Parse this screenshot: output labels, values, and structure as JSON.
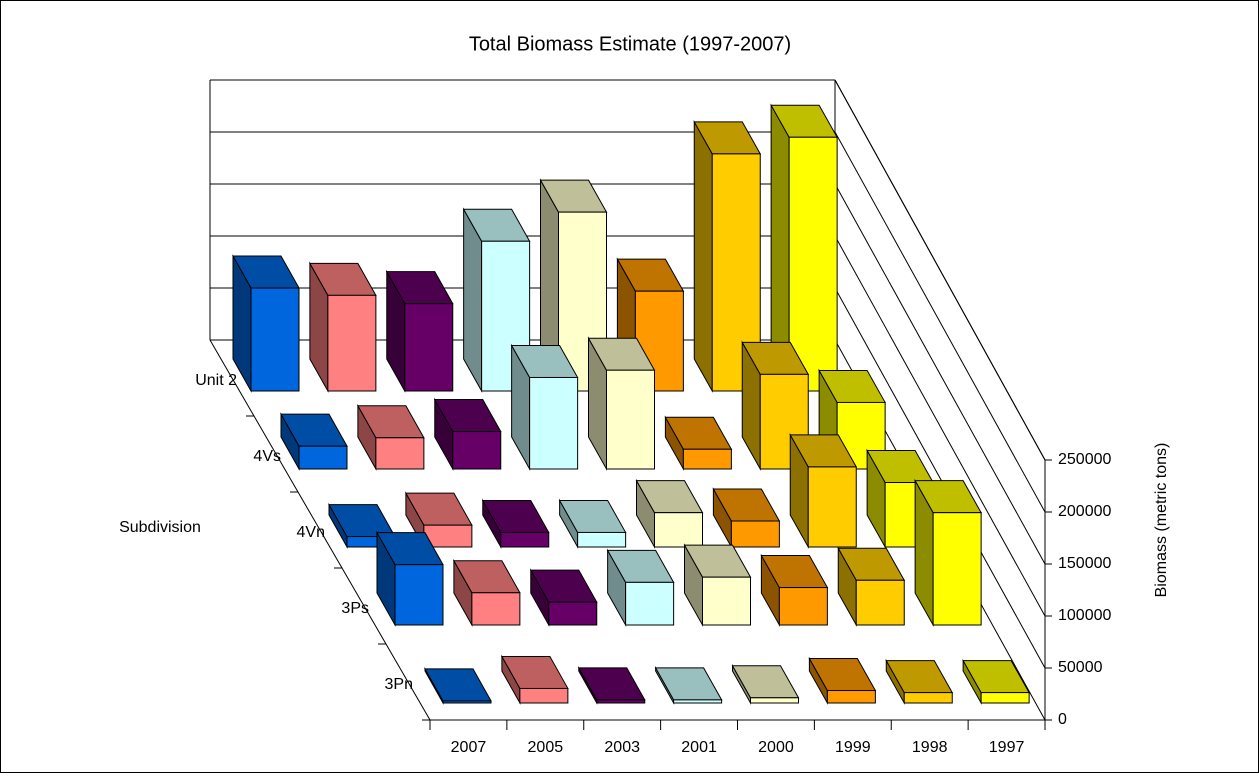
{
  "chart_data": {
    "type": "bar3d",
    "title": "Total Biomass Estimate (1997-2007)",
    "x_label": "Subdivision",
    "y_label": "Biomass (metric tons)",
    "categories": [
      "Unit 2",
      "4Vs",
      "4Vn",
      "3Ps",
      "3Pn"
    ],
    "series": [
      {
        "name": "2007",
        "color": "#0066dd",
        "values": [
          99000,
          22000,
          10000,
          58000,
          2000
        ]
      },
      {
        "name": "2005",
        "color": "#ff8080",
        "values": [
          92000,
          30000,
          21000,
          31000,
          14000
        ]
      },
      {
        "name": "2003",
        "color": "#660066",
        "values": [
          84000,
          36000,
          14000,
          22000,
          3000
        ]
      },
      {
        "name": "2001",
        "color": "#ccffff",
        "values": [
          144000,
          88000,
          14000,
          41000,
          3000
        ]
      },
      {
        "name": "2000",
        "color": "#ffffcc",
        "values": [
          172000,
          95000,
          33000,
          46000,
          5000
        ]
      },
      {
        "name": "1999",
        "color": "#ff9900",
        "values": [
          96000,
          19000,
          25000,
          36000,
          12000
        ]
      },
      {
        "name": "1998",
        "color": "#ffcc00",
        "values": [
          228000,
          91000,
          77000,
          43000,
          10000
        ]
      },
      {
        "name": "1997",
        "color": "#ffff00",
        "values": [
          244000,
          64000,
          62000,
          108000,
          10000
        ]
      }
    ],
    "ylim": [
      0,
      250000
    ],
    "yticks": [
      0,
      50000,
      100000,
      150000,
      200000,
      250000
    ],
    "grid": true
  }
}
